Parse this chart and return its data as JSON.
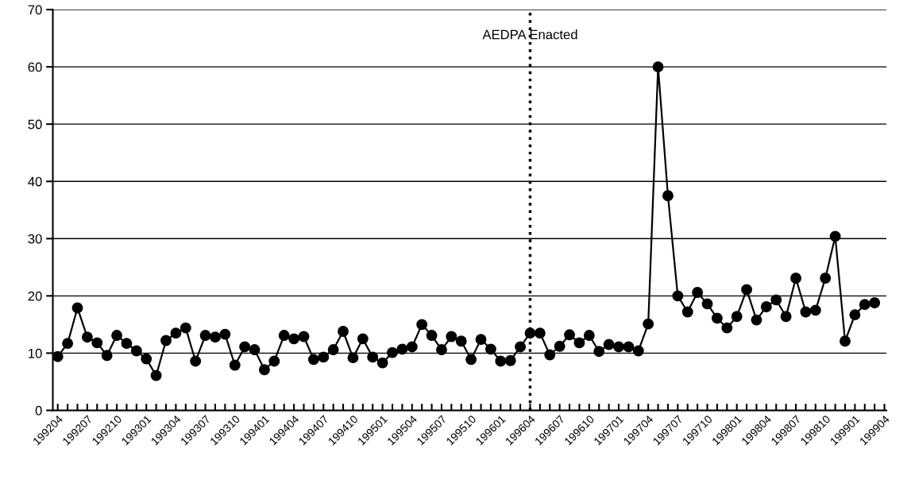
{
  "chart_data": {
    "type": "line",
    "categories": [
      "199204",
      null,
      null,
      "199207",
      null,
      null,
      "199210",
      null,
      null,
      "199301",
      null,
      null,
      "199304",
      null,
      null,
      "199307",
      null,
      null,
      "199310",
      null,
      null,
      "199401",
      null,
      null,
      "199404",
      null,
      null,
      "199407",
      null,
      null,
      "199410",
      null,
      null,
      "199501",
      null,
      null,
      "199504",
      null,
      null,
      "199507",
      null,
      null,
      "199510",
      null,
      null,
      "199601",
      null,
      null,
      "199604",
      null,
      null,
      "199607",
      null,
      null,
      "199610",
      null,
      null,
      "199701",
      null,
      null,
      "199704",
      null,
      null,
      "199707",
      null,
      null,
      "199710",
      null,
      null,
      "199801",
      null,
      null,
      "199804",
      null,
      null,
      "199807",
      null,
      null,
      "199810",
      null,
      null,
      "199901",
      null,
      null,
      "199904"
    ],
    "series": [
      {
        "color": "#000000",
        "values": [
          9.4,
          11.7,
          17.9,
          12.8,
          11.8,
          9.6,
          13.1,
          11.7,
          10.4,
          9.0,
          6.1,
          12.2,
          13.5,
          14.4,
          8.6,
          13.1,
          12.8,
          13.3,
          7.9,
          11.1,
          10.6,
          7.1,
          8.6,
          13.1,
          12.5,
          12.9,
          8.9,
          9.3,
          10.6,
          13.8,
          9.2,
          12.5,
          9.3,
          8.3,
          10.1,
          10.7,
          11.1,
          15.0,
          13.1,
          10.6,
          12.9,
          12.1,
          8.9,
          12.4,
          10.7,
          8.6,
          8.7,
          11.1,
          13.5,
          13.5,
          9.7,
          11.2,
          13.2,
          11.8,
          13.1,
          10.3,
          11.5,
          11.1,
          11.1,
          10.4,
          15.1,
          60.0,
          37.5,
          20.0,
          17.2,
          20.6,
          18.6,
          16.1,
          14.4,
          16.4,
          21.1,
          15.8,
          18.1,
          19.3,
          16.4,
          23.1,
          17.2,
          17.5,
          23.1,
          30.4,
          12.1,
          16.7,
          18.5,
          18.8,
          null
        ]
      }
    ],
    "ylim": [
      0,
      70
    ],
    "yticks": [
      0,
      10,
      20,
      30,
      40,
      50,
      60,
      70
    ],
    "grid": "y",
    "marker": "circle",
    "line_style": "solid",
    "ref_lines": [
      {
        "axis": "x",
        "value": "199604",
        "label": "AEDPA Enacted",
        "line_style": "dotted",
        "color": "#000000"
      }
    ]
  }
}
